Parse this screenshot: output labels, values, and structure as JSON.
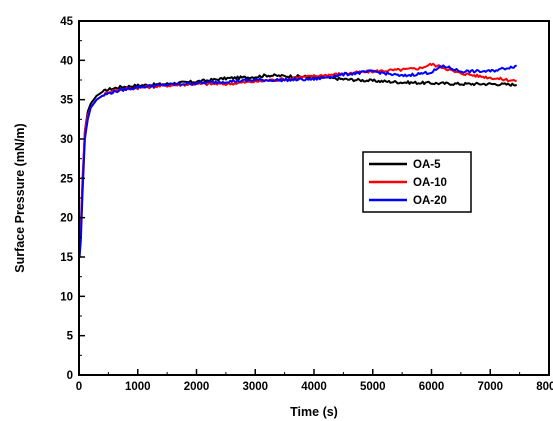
{
  "chart_data": {
    "type": "line",
    "xlabel": "Time (s)",
    "ylabel": "Surface Pressure (mN/m)",
    "xlim": [
      0,
      8000
    ],
    "ylim": [
      0,
      45
    ],
    "x_ticks": [
      0,
      1000,
      2000,
      3000,
      4000,
      5000,
      6000,
      7000,
      8000
    ],
    "y_ticks": [
      0,
      5,
      10,
      15,
      20,
      25,
      30,
      35,
      40,
      45
    ],
    "grid": false,
    "legend_position": "middle-right",
    "series": [
      {
        "name": "OA-5",
        "color": "#000000",
        "x": [
          0,
          10,
          30,
          60,
          100,
          150,
          200,
          300,
          400,
          500,
          700,
          1000,
          1500,
          2000,
          2500,
          3000,
          3200,
          3500,
          4000,
          4500,
          5000,
          5500,
          6000,
          6500,
          7000,
          7450
        ],
        "y": [
          16,
          16,
          18,
          24,
          31,
          33.5,
          34.5,
          35.5,
          36,
          36.3,
          36.6,
          36.8,
          37,
          37.3,
          37.7,
          37.9,
          38.1,
          38,
          37.9,
          37.6,
          37.4,
          37.2,
          37.1,
          37,
          37,
          36.9
        ]
      },
      {
        "name": "OA-10",
        "color": "#ff0000",
        "x": [
          0,
          10,
          30,
          60,
          100,
          150,
          200,
          300,
          400,
          500,
          700,
          1000,
          1500,
          2000,
          2500,
          3000,
          3500,
          4000,
          4500,
          5000,
          5500,
          5800,
          6000,
          6200,
          6400,
          6800,
          7200,
          7450
        ],
        "y": [
          16,
          16,
          19,
          25,
          31,
          33,
          34,
          35,
          35.5,
          36,
          36.3,
          36.5,
          36.8,
          37,
          37,
          37.3,
          37.6,
          38,
          38.3,
          38.6,
          38.8,
          39,
          39.5,
          39.1,
          38.5,
          38,
          37.6,
          37.4
        ]
      },
      {
        "name": "OA-20",
        "color": "#0000ff",
        "x": [
          0,
          10,
          30,
          60,
          100,
          150,
          200,
          300,
          400,
          500,
          700,
          1000,
          1500,
          2000,
          2500,
          3000,
          3500,
          4000,
          4500,
          5000,
          5500,
          6000,
          6200,
          6500,
          7000,
          7450
        ],
        "y": [
          15,
          15,
          17,
          23,
          30,
          32.5,
          34,
          35,
          35.5,
          35.8,
          36.2,
          36.6,
          36.9,
          37.1,
          37.3,
          37.5,
          37.5,
          37.6,
          38.2,
          38.6,
          38,
          38.5,
          39.3,
          38.6,
          38.6,
          39.3
        ]
      }
    ]
  }
}
